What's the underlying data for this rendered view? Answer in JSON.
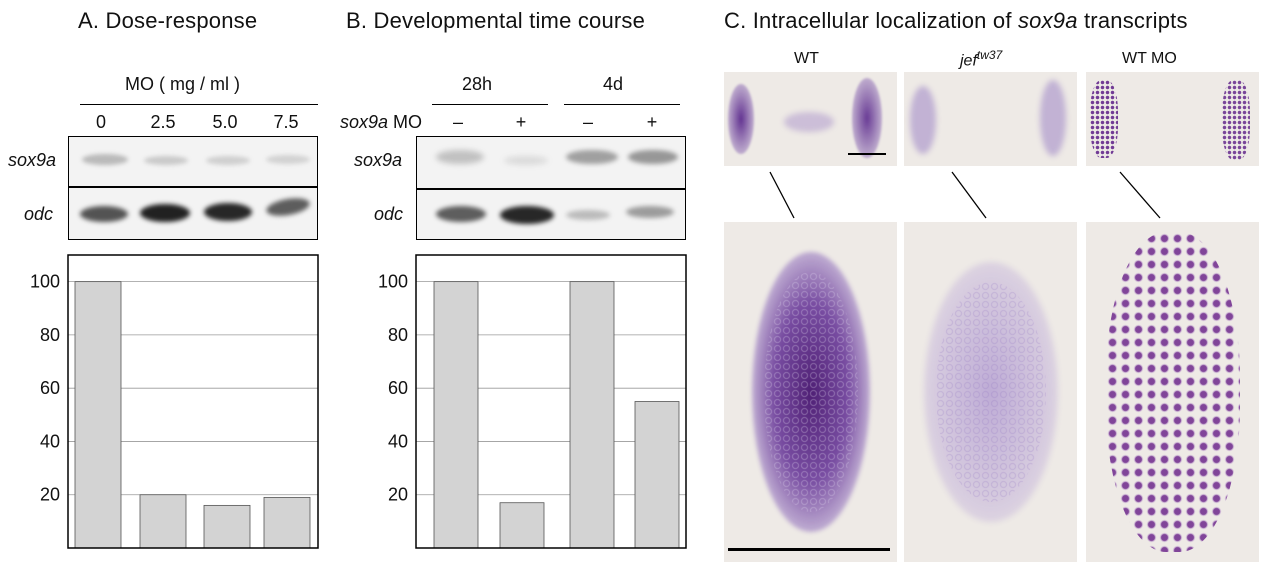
{
  "panelA": {
    "title": "A. Dose-response",
    "group_label": "MO ( mg / ml )",
    "lanes": [
      "0",
      "2.5",
      "5.0",
      "7.5"
    ],
    "row_labels": [
      "sox9a",
      "odc"
    ],
    "chart_data": {
      "type": "bar",
      "categories": [
        "0",
        "2.5",
        "5.0",
        "7.5"
      ],
      "values": [
        100,
        20,
        16,
        19
      ],
      "ylim": [
        0,
        110
      ],
      "yticks": [
        20,
        40,
        60,
        80,
        100
      ],
      "grid": true
    }
  },
  "panelB": {
    "title": "B. Developmental time course",
    "groups": [
      "28h",
      "4d"
    ],
    "mo_label_gene": "sox9a",
    "mo_label_suffix": " MO",
    "lanes": [
      "–",
      "+",
      "–",
      "+"
    ],
    "row_labels": [
      "sox9a",
      "odc"
    ],
    "chart_data": {
      "type": "bar",
      "categories": [
        "28h –",
        "28h +",
        "4d –",
        "4d +"
      ],
      "values": [
        100,
        17,
        100,
        55
      ],
      "ylim": [
        0,
        110
      ],
      "yticks": [
        20,
        40,
        60,
        80,
        100
      ],
      "grid": true
    }
  },
  "panelC": {
    "title_pre": "C. Intracellular localization of ",
    "title_gene": "sox9a",
    "title_post": " transcripts",
    "col1": "WT",
    "col2_main": "jef",
    "col2_sup": "tw37",
    "col3": "WT MO"
  },
  "colors": {
    "bar_fill": "#d3d3d3",
    "stain": "#5a2a8a"
  }
}
